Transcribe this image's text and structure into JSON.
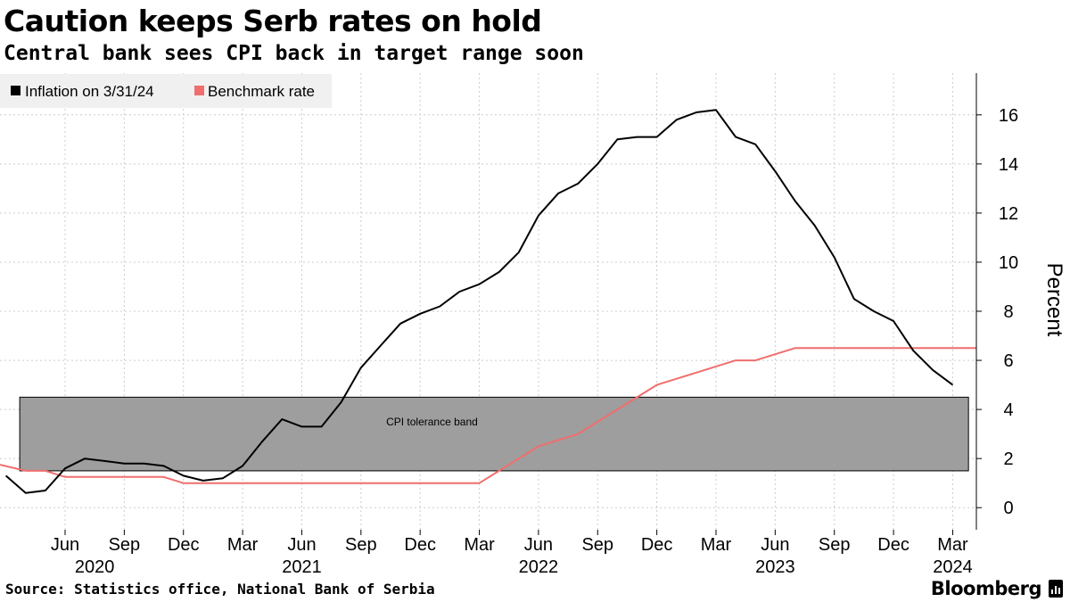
{
  "header": {
    "title": "Caution keeps Serb rates on hold",
    "subtitle": "Central bank sees CPI back in target range soon"
  },
  "footer": {
    "source": "Source: Statistics office, National Bank of Serbia",
    "brand": "Bloomberg"
  },
  "chart_data": {
    "type": "line",
    "title": "Caution keeps Serb rates on hold",
    "subtitle": "Central bank sees CPI back in target range soon",
    "ylabel": "Percent",
    "xlabel": "",
    "ylim": [
      -0.9,
      17.7
    ],
    "yticks": [
      0,
      2,
      4,
      6,
      8,
      10,
      12,
      14,
      16
    ],
    "x_range_months": [
      -0.3,
      49.2
    ],
    "x_start": "2020-03",
    "month_ticks": [
      {
        "m": 3,
        "label": "Jun"
      },
      {
        "m": 6,
        "label": "Sep"
      },
      {
        "m": 9,
        "label": "Dec"
      },
      {
        "m": 12,
        "label": "Mar"
      },
      {
        "m": 15,
        "label": "Jun"
      },
      {
        "m": 18,
        "label": "Sep"
      },
      {
        "m": 21,
        "label": "Dec"
      },
      {
        "m": 24,
        "label": "Mar"
      },
      {
        "m": 27,
        "label": "Jun"
      },
      {
        "m": 30,
        "label": "Sep"
      },
      {
        "m": 33,
        "label": "Dec"
      },
      {
        "m": 36,
        "label": "Mar"
      },
      {
        "m": 39,
        "label": "Jun"
      },
      {
        "m": 42,
        "label": "Sep"
      },
      {
        "m": 45,
        "label": "Dec"
      },
      {
        "m": 48,
        "label": "Mar"
      }
    ],
    "year_ticks": [
      {
        "m": 4.5,
        "label": "2020"
      },
      {
        "m": 15,
        "label": "2021"
      },
      {
        "m": 27,
        "label": "2022"
      },
      {
        "m": 39,
        "label": "2023"
      },
      {
        "m": 48,
        "label": "2024"
      }
    ],
    "legend": [
      "Inflation on 3/31/24",
      "Benchmark rate"
    ],
    "legend_position": "top-left",
    "grid": true,
    "annotations": [
      {
        "type": "band",
        "label": "CPI tolerance band",
        "y_from": 1.5,
        "y_to": 4.5,
        "x_from_month": 0.7,
        "x_to_month": 48.8
      }
    ],
    "colors": {
      "inflation": "#000000",
      "benchmark": "#f06e6e",
      "band": "#9e9e9e",
      "grid": "#cccccc",
      "legend_bg": "#f0f0f0"
    },
    "series": [
      {
        "name": "Inflation on 3/31/24",
        "x": [
          0,
          1,
          2,
          3,
          4,
          5,
          6,
          7,
          8,
          9,
          10,
          11,
          12,
          13,
          14,
          15,
          16,
          17,
          18,
          19,
          20,
          21,
          22,
          23,
          24,
          25,
          26,
          27,
          28,
          29,
          30,
          31,
          32,
          33,
          34,
          35,
          36,
          37,
          38,
          39,
          40,
          41,
          42,
          43,
          44,
          45,
          46,
          47,
          48
        ],
        "values": [
          1.3,
          0.6,
          0.7,
          1.6,
          2.0,
          1.9,
          1.8,
          1.8,
          1.7,
          1.3,
          1.1,
          1.2,
          1.7,
          2.7,
          3.6,
          3.3,
          3.3,
          4.3,
          5.7,
          6.6,
          7.5,
          7.9,
          8.2,
          8.8,
          9.1,
          9.6,
          10.4,
          11.9,
          12.8,
          13.2,
          14.0,
          15.0,
          15.1,
          15.1,
          15.8,
          16.1,
          16.2,
          15.1,
          14.8,
          13.7,
          12.5,
          11.5,
          10.2,
          8.5,
          8.0,
          7.6,
          6.4,
          5.6,
          5.0
        ]
      },
      {
        "name": "Benchmark rate",
        "x": [
          -0.3,
          1,
          2,
          3,
          4,
          5,
          6,
          7,
          8,
          9,
          10,
          11,
          12,
          13,
          14,
          15,
          16,
          17,
          18,
          19,
          20,
          21,
          22,
          23,
          24,
          25,
          26,
          27,
          28,
          29,
          30,
          31,
          32,
          33,
          34,
          35,
          36,
          37,
          38,
          39,
          40,
          41,
          42,
          43,
          44,
          45,
          46,
          47,
          48,
          49.2
        ],
        "values": [
          1.75,
          1.5,
          1.5,
          1.25,
          1.25,
          1.25,
          1.25,
          1.25,
          1.25,
          1.0,
          1.0,
          1.0,
          1.0,
          1.0,
          1.0,
          1.0,
          1.0,
          1.0,
          1.0,
          1.0,
          1.0,
          1.0,
          1.0,
          1.0,
          1.0,
          1.5,
          2.0,
          2.5,
          2.75,
          3.0,
          3.5,
          4.0,
          4.5,
          5.0,
          5.25,
          5.5,
          5.75,
          6.0,
          6.0,
          6.25,
          6.5,
          6.5,
          6.5,
          6.5,
          6.5,
          6.5,
          6.5,
          6.5,
          6.5,
          6.5
        ]
      }
    ]
  }
}
